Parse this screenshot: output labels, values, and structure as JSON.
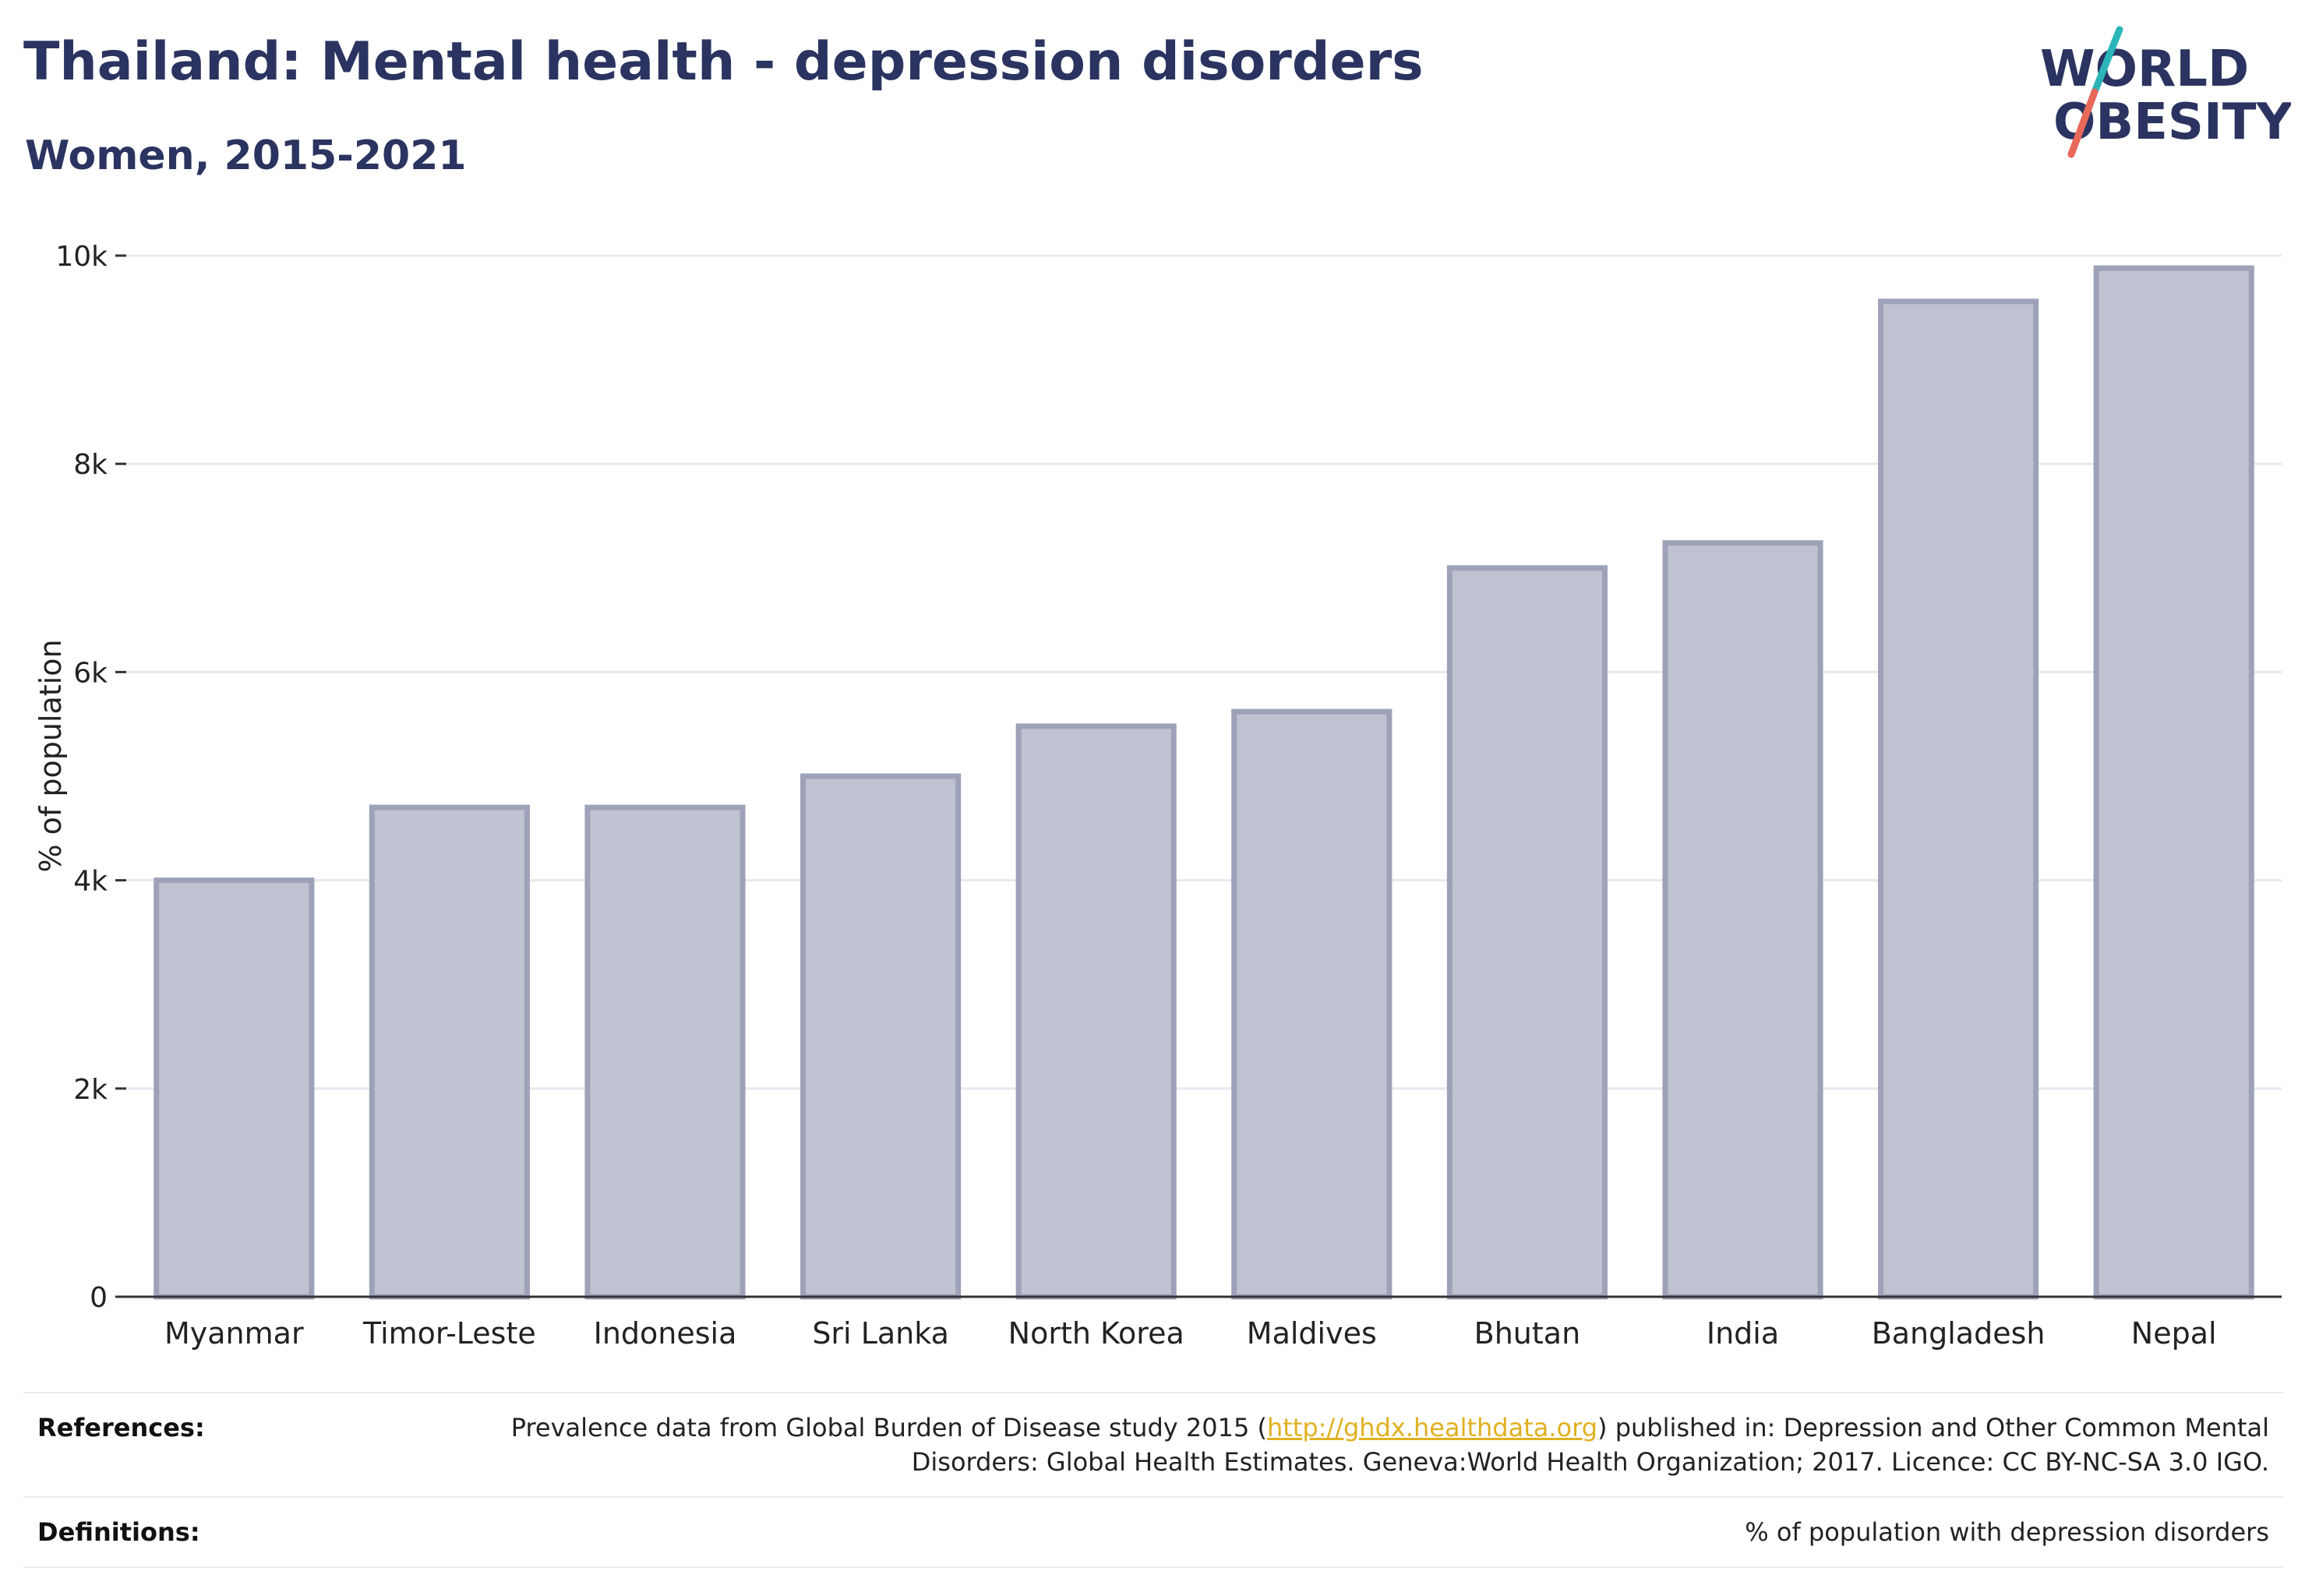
{
  "header": {
    "title": "Thailand: Mental health - depression disorders",
    "subtitle": "Women, 2015-2021"
  },
  "logo": {
    "line1": "WORLD",
    "line2": "OBESITY",
    "text_color": "#2b3360",
    "slash_teal": "#2bb5b8",
    "slash_coral": "#e8685a"
  },
  "chart_data": {
    "type": "bar",
    "categories": [
      "Myanmar",
      "Timor-Leste",
      "Indonesia",
      "Sri Lanka",
      "North Korea",
      "Maldives",
      "Bhutan",
      "India",
      "Bangladesh",
      "Nepal"
    ],
    "values": [
      4000,
      4700,
      4700,
      5000,
      5480,
      5620,
      7000,
      7240,
      9560,
      9880
    ],
    "ylabel": "% of population",
    "ylim": [
      0,
      10000
    ],
    "yticks": [
      0,
      2000,
      4000,
      6000,
      8000,
      10000
    ],
    "ytick_labels": [
      "0",
      "2k",
      "4k",
      "6k",
      "8k",
      "10k"
    ],
    "grid": true,
    "bar_fill": "#bfc2d0",
    "bar_stroke": "#9ea2b8"
  },
  "footer": {
    "references_label": "References:",
    "references_pre": "Prevalence data from Global Burden of Disease study 2015 (",
    "references_link": "http://ghdx.healthdata.org",
    "references_post": ") published in: Depression and Other Common Mental Disorders: Global Health Estimates. Geneva:World Health Organization; 2017. Licence: CC BY-NC-SA 3.0 IGO.",
    "definitions_label": "Definitions:",
    "definitions_text": "% of population with depression disorders"
  }
}
